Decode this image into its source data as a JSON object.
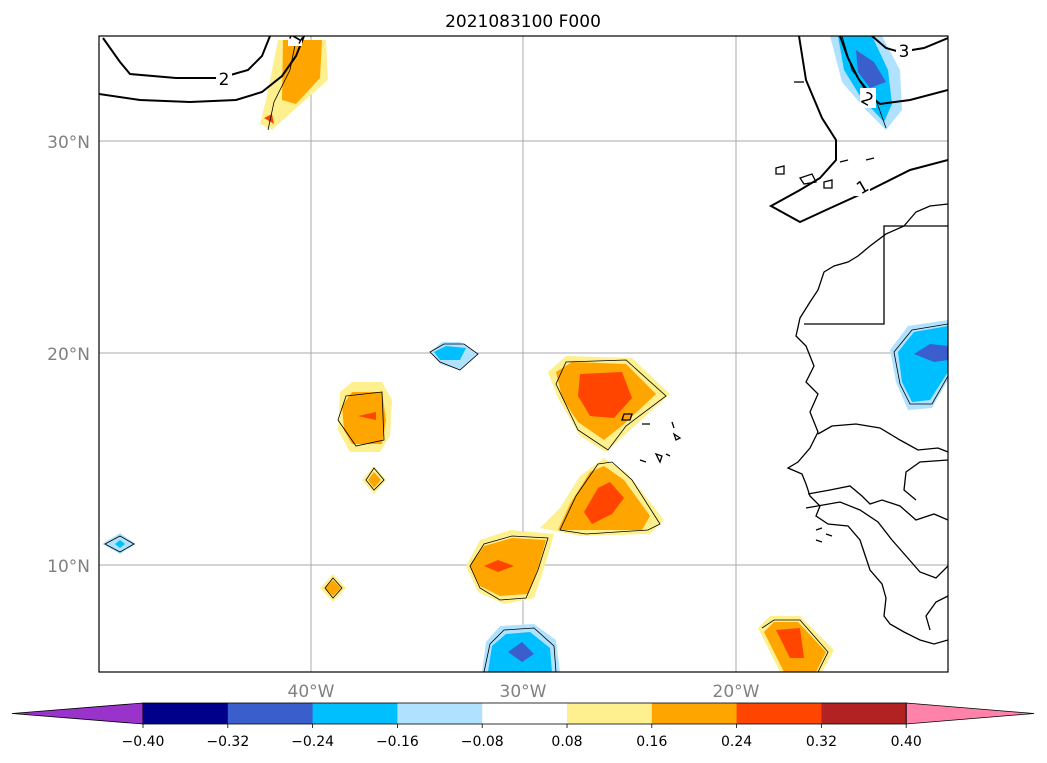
{
  "title": "2021083100 F000",
  "map": {
    "lon_range": [
      -50,
      -10
    ],
    "lat_range": [
      5,
      35
    ],
    "gridlines": true,
    "lon_ticks": [
      {
        "value": -40,
        "label": "40°W"
      },
      {
        "value": -30,
        "label": "30°W"
      },
      {
        "value": -20,
        "label": "20°W"
      }
    ],
    "lat_ticks": [
      {
        "value": 30,
        "label": "30°N"
      },
      {
        "value": 20,
        "label": "20°N"
      },
      {
        "value": 10,
        "label": "10°N"
      }
    ],
    "contour_labels": [
      {
        "id": "c2-left",
        "text": "2"
      },
      {
        "id": "c1-left",
        "text": "1"
      },
      {
        "id": "c3-right",
        "text": "3"
      },
      {
        "id": "c2-right",
        "text": "2"
      },
      {
        "id": "c1-right",
        "text": "1"
      }
    ]
  },
  "colorbar": {
    "extend": "both",
    "colors": [
      "#9933cc",
      "#00008b",
      "#3a5fcd",
      "#00bfff",
      "#b0e2ff",
      "#ffffff",
      "#fff08f",
      "#ffa500",
      "#ff4500",
      "#b22222",
      "#ff82ab"
    ],
    "tick_labels": [
      "−0.40",
      "−0.32",
      "−0.24",
      "−0.16",
      "−0.08",
      "0.08",
      "0.16",
      "0.24",
      "0.32",
      "0.40"
    ]
  },
  "chart_data": {
    "type": "heatmap",
    "title": "2021083100 F000",
    "x_extent": [
      -50,
      -10
    ],
    "y_extent": [
      5,
      35
    ],
    "levels": [
      -0.4,
      -0.32,
      -0.24,
      -0.16,
      -0.08,
      0.08,
      0.16,
      0.24,
      0.32,
      0.4
    ],
    "grid": true,
    "legend": "bottom colorbar"
  }
}
